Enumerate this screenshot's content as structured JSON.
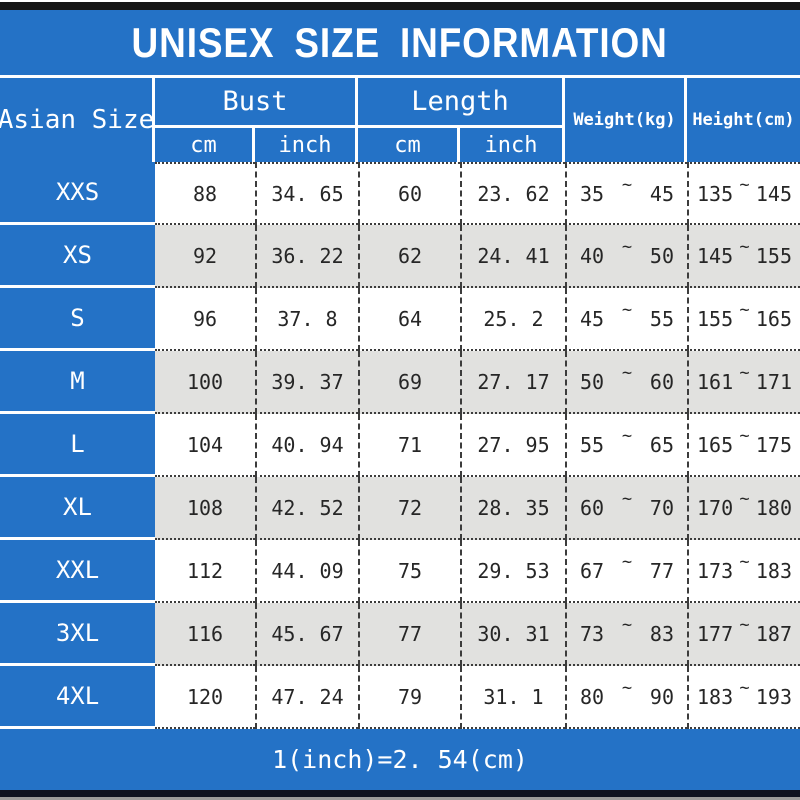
{
  "colors": {
    "accent_blue": "#2472C6",
    "alt_row_gray": "#E1E1DF",
    "data_text": "#262626",
    "top_bar_black": "#161616",
    "bottom_bar_navy": "#0e1220"
  },
  "chart_data": {
    "type": "table",
    "title": "UNISEX SIZE INFORMATION",
    "header": {
      "size_column": "Asian Size",
      "bust": "Bust",
      "length": "Length",
      "cm": "cm",
      "inch": "inch",
      "weight": "Weight(kg)",
      "height": "Height(cm)"
    },
    "tilde": "~",
    "columns": [
      "Asian Size",
      "Bust cm",
      "Bust inch",
      "Length cm",
      "Length inch",
      "Weight(kg)",
      "Height(cm)"
    ],
    "rows": [
      {
        "size": "XXS",
        "bust_cm": "88",
        "bust_inch": "34. 65",
        "length_cm": "60",
        "length_inch": "23. 62",
        "weight_min": "35",
        "weight_max": "45",
        "height_min": "135",
        "height_max": "145"
      },
      {
        "size": "XS",
        "bust_cm": "92",
        "bust_inch": "36. 22",
        "length_cm": "62",
        "length_inch": "24. 41",
        "weight_min": "40",
        "weight_max": "50",
        "height_min": "145",
        "height_max": "155"
      },
      {
        "size": "S",
        "bust_cm": "96",
        "bust_inch": "37. 8",
        "length_cm": "64",
        "length_inch": "25. 2",
        "weight_min": "45",
        "weight_max": "55",
        "height_min": "155",
        "height_max": "165"
      },
      {
        "size": "M",
        "bust_cm": "100",
        "bust_inch": "39. 37",
        "length_cm": "69",
        "length_inch": "27. 17",
        "weight_min": "50",
        "weight_max": "60",
        "height_min": "161",
        "height_max": "171"
      },
      {
        "size": "L",
        "bust_cm": "104",
        "bust_inch": "40. 94",
        "length_cm": "71",
        "length_inch": "27. 95",
        "weight_min": "55",
        "weight_max": "65",
        "height_min": "165",
        "height_max": "175"
      },
      {
        "size": "XL",
        "bust_cm": "108",
        "bust_inch": "42. 52",
        "length_cm": "72",
        "length_inch": "28. 35",
        "weight_min": "60",
        "weight_max": "70",
        "height_min": "170",
        "height_max": "180"
      },
      {
        "size": "XXL",
        "bust_cm": "112",
        "bust_inch": "44. 09",
        "length_cm": "75",
        "length_inch": "29. 53",
        "weight_min": "67",
        "weight_max": "77",
        "height_min": "173",
        "height_max": "183"
      },
      {
        "size": "3XL",
        "bust_cm": "116",
        "bust_inch": "45. 67",
        "length_cm": "77",
        "length_inch": "30. 31",
        "weight_min": "73",
        "weight_max": "83",
        "height_min": "177",
        "height_max": "187"
      },
      {
        "size": "4XL",
        "bust_cm": "120",
        "bust_inch": "47. 24",
        "length_cm": "79",
        "length_inch": "31. 1",
        "weight_min": "80",
        "weight_max": "90",
        "height_min": "183",
        "height_max": "193"
      }
    ],
    "footnote": "1(inch)=2. 54(cm)"
  }
}
